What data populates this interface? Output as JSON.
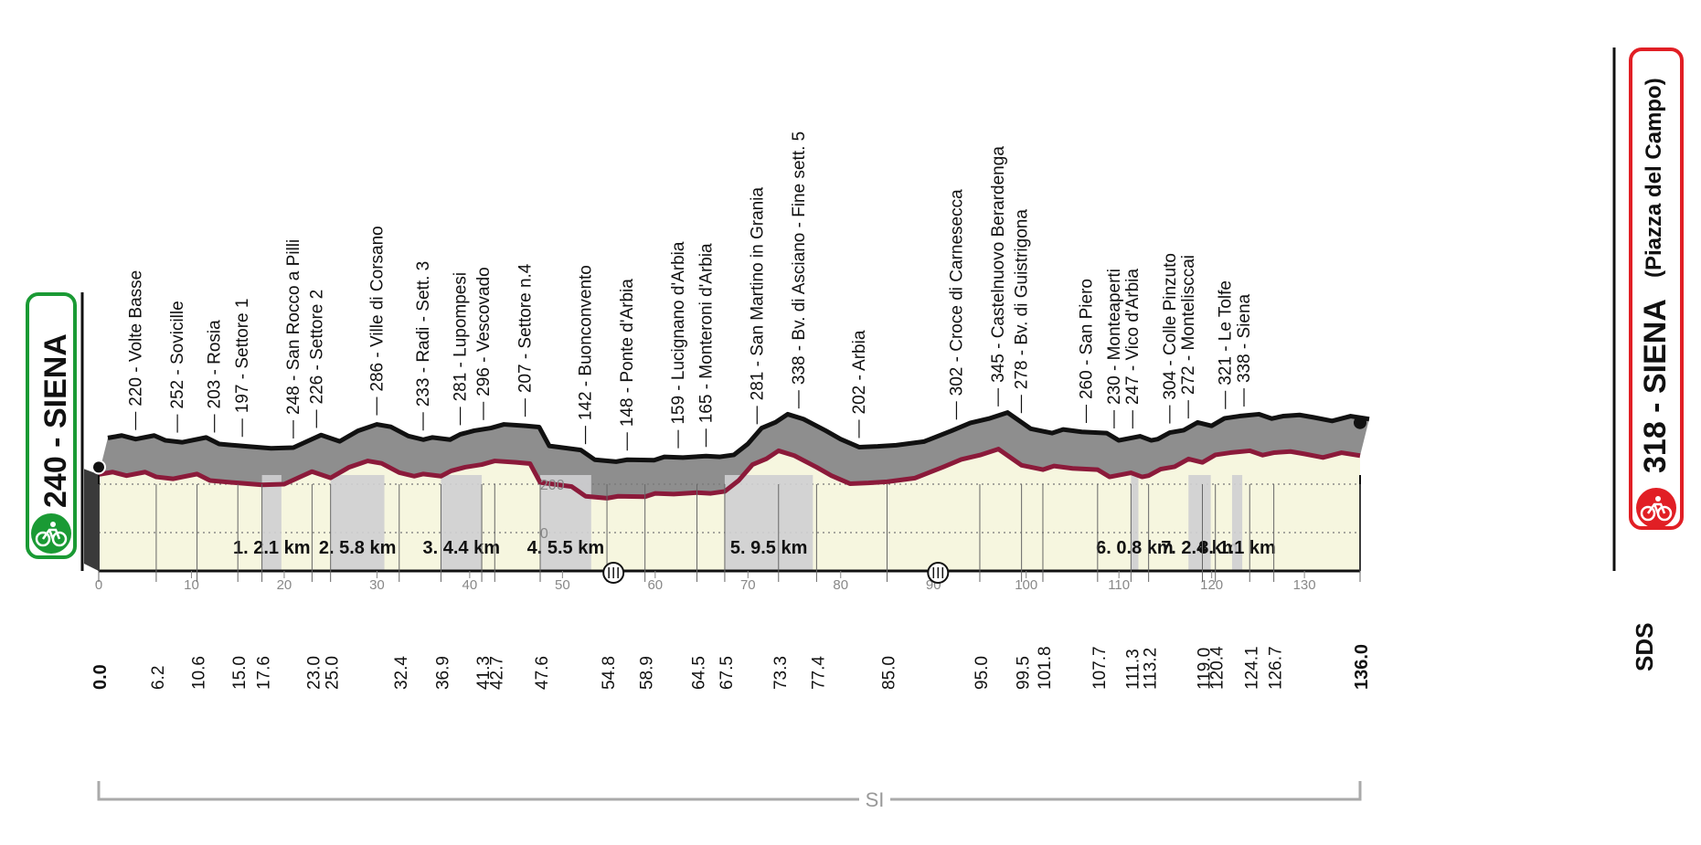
{
  "start": {
    "label": "240 - SIENA",
    "color": "#1a9a34"
  },
  "finish": {
    "label": "318 - SIENA",
    "sub": "(Piazza del Campo)",
    "color": "#e11f25"
  },
  "brand": "SDS",
  "footer_label": "SI",
  "chart_data": {
    "type": "area",
    "xlim": [
      0,
      136
    ],
    "x_ticks": [
      0,
      10,
      20,
      30,
      40,
      50,
      60,
      70,
      80,
      90,
      100,
      110,
      120,
      130
    ],
    "y_ticks": [
      0,
      200
    ],
    "km_markers": [
      "0.0",
      "6.2",
      "10.6",
      "15.0",
      "17.6",
      "23.0",
      "25.0",
      "32.4",
      "36.9",
      "41.3",
      "42.7",
      "47.6",
      "54.8",
      "58.9",
      "64.5",
      "67.5",
      "73.3",
      "77.4",
      "85.0",
      "95.0",
      "99.5",
      "101.8",
      "107.7",
      "111.3",
      "113.2",
      "119.0",
      "120.4",
      "124.1",
      "126.7",
      "136.0"
    ],
    "places": [
      {
        "km": 3.0,
        "label": "220 - Volte Basse"
      },
      {
        "km": 7.5,
        "label": "252 - Sovicille"
      },
      {
        "km": 11.5,
        "label": "203 - Rosia"
      },
      {
        "km": 14.5,
        "label": "197 - Settore 1"
      },
      {
        "km": 20.0,
        "label": "248 - San Rocco a Pilli"
      },
      {
        "km": 22.5,
        "label": "226 - Settore 2"
      },
      {
        "km": 29.0,
        "label": "286 - Ville di Corsano"
      },
      {
        "km": 34.0,
        "label": "233 - Radi - Sett. 3"
      },
      {
        "km": 38.0,
        "label": "281 - Lupompesi"
      },
      {
        "km": 40.5,
        "label": "296 - Vescovado"
      },
      {
        "km": 45.0,
        "label": "207 - Settore n.4"
      },
      {
        "km": 51.5,
        "label": "142 - Buonconvento"
      },
      {
        "km": 56.0,
        "label": "148 - Ponte d'Arbia"
      },
      {
        "km": 61.5,
        "label": "159 - Lucignano d'Arbia"
      },
      {
        "km": 64.5,
        "label": "165 - Monteroni d'Arbia"
      },
      {
        "km": 70.0,
        "label": "281 - San Martino in Grania"
      },
      {
        "km": 74.5,
        "label": "338 - Bv. di Asciano - Fine sett. 5"
      },
      {
        "km": 81.0,
        "label": "202 - Arbia"
      },
      {
        "km": 91.5,
        "label": "302 - Croce di Carnesecca"
      },
      {
        "km": 96.0,
        "label": "345 - Castelnuovo Berardenga"
      },
      {
        "km": 98.5,
        "label": "278 - Bv. di Guistrigona"
      },
      {
        "km": 105.5,
        "label": "260 - San Piero"
      },
      {
        "km": 108.5,
        "label": "230 - Monteaperti"
      },
      {
        "km": 110.5,
        "label": "247 - Vico d'Arbia"
      },
      {
        "km": 114.5,
        "label": "304 - Colle Pinzuto"
      },
      {
        "km": 116.5,
        "label": "272 - Montelisccai"
      },
      {
        "km": 120.5,
        "label": "321 - Le Tolfe"
      },
      {
        "km": 122.5,
        "label": "338 - Siena"
      }
    ],
    "sectors": [
      {
        "label": "1. 2.1 km",
        "from": 17.6,
        "to": 19.7
      },
      {
        "label": "2. 5.8 km",
        "from": 25.0,
        "to": 30.8
      },
      {
        "label": "3. 4.4 km",
        "from": 36.9,
        "to": 41.3
      },
      {
        "label": "4. 5.5 km",
        "from": 47.6,
        "to": 53.1
      },
      {
        "label": "5. 9.5 km",
        "from": 67.5,
        "to": 77.0
      },
      {
        "label": "6. 0.8 km",
        "from": 111.3,
        "to": 112.1
      },
      {
        "label": "7. 2.4 km",
        "from": 117.5,
        "to": 119.9
      },
      {
        "label": "8. 1.1 km",
        "from": 122.2,
        "to": 123.3
      }
    ],
    "elevation": [
      [
        0,
        240
      ],
      [
        1.5,
        250
      ],
      [
        3,
        235
      ],
      [
        5,
        250
      ],
      [
        6.2,
        230
      ],
      [
        8,
        222
      ],
      [
        10.6,
        242
      ],
      [
        12,
        215
      ],
      [
        15,
        205
      ],
      [
        17.6,
        197
      ],
      [
        20,
        200
      ],
      [
        22,
        235
      ],
      [
        23,
        252
      ],
      [
        25,
        226
      ],
      [
        27,
        270
      ],
      [
        29,
        296
      ],
      [
        30.5,
        286
      ],
      [
        32.4,
        248
      ],
      [
        34,
        233
      ],
      [
        35,
        242
      ],
      [
        36.9,
        233
      ],
      [
        38,
        255
      ],
      [
        39.5,
        270
      ],
      [
        41.3,
        281
      ],
      [
        42.7,
        296
      ],
      [
        45,
        290
      ],
      [
        46.5,
        285
      ],
      [
        47.6,
        207
      ],
      [
        51,
        190
      ],
      [
        52.5,
        150
      ],
      [
        54.8,
        142
      ],
      [
        56,
        150
      ],
      [
        58.9,
        148
      ],
      [
        60,
        162
      ],
      [
        62,
        159
      ],
      [
        64.5,
        165
      ],
      [
        66,
        162
      ],
      [
        67.5,
        170
      ],
      [
        69,
        215
      ],
      [
        70.5,
        281
      ],
      [
        72,
        305
      ],
      [
        73.3,
        338
      ],
      [
        75,
        318
      ],
      [
        77.4,
        270
      ],
      [
        79,
        235
      ],
      [
        81,
        202
      ],
      [
        83,
        205
      ],
      [
        85,
        210
      ],
      [
        88,
        225
      ],
      [
        91,
        270
      ],
      [
        93,
        302
      ],
      [
        95,
        320
      ],
      [
        97,
        345
      ],
      [
        99.5,
        278
      ],
      [
        101.8,
        260
      ],
      [
        103,
        275
      ],
      [
        105,
        265
      ],
      [
        107.7,
        260
      ],
      [
        109,
        230
      ],
      [
        111.3,
        247
      ],
      [
        112.5,
        230
      ],
      [
        113.2,
        235
      ],
      [
        114.5,
        262
      ],
      [
        116,
        272
      ],
      [
        117.5,
        304
      ],
      [
        119,
        290
      ],
      [
        120.4,
        321
      ],
      [
        122,
        330
      ],
      [
        124.1,
        338
      ],
      [
        125.5,
        320
      ],
      [
        126.7,
        330
      ],
      [
        128.5,
        335
      ],
      [
        130,
        325
      ],
      [
        132,
        310
      ],
      [
        134,
        330
      ],
      [
        136,
        318
      ]
    ]
  }
}
